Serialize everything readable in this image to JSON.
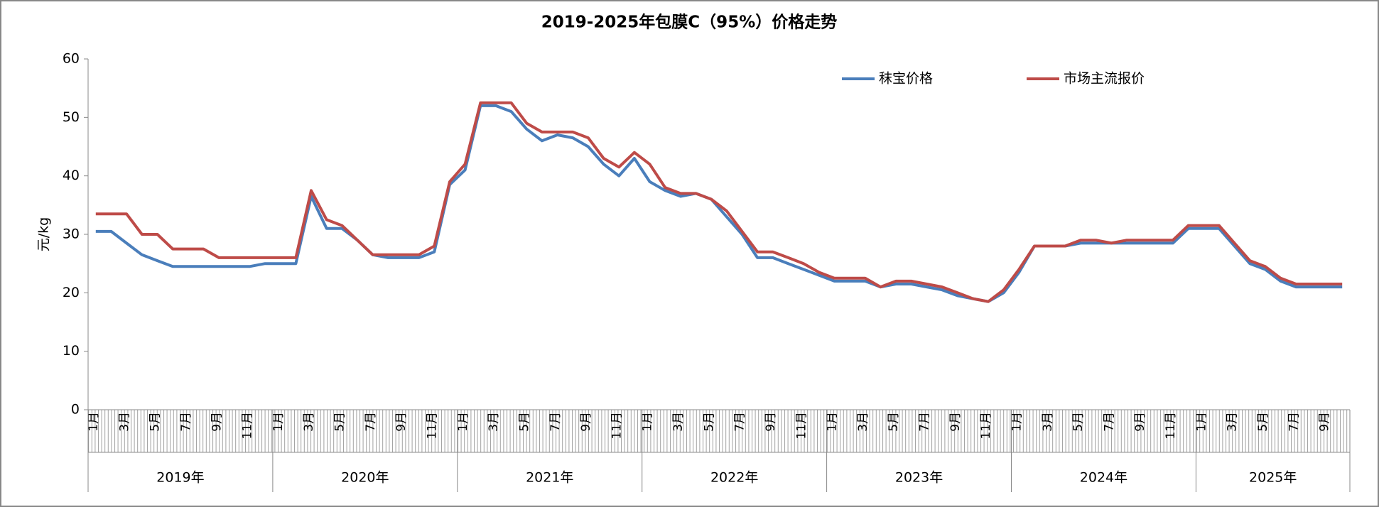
{
  "chart_data": {
    "type": "line",
    "title": "2019-2025年包膜C（95%）价格走势",
    "y_label": "元/kg",
    "categories": [
      "1月",
      null,
      "3月",
      null,
      "5月",
      null,
      "7月",
      null,
      "9月",
      null,
      "11月",
      null,
      "1月",
      null,
      "3月",
      null,
      "5月",
      null,
      "7月",
      null,
      "9月",
      null,
      "11月",
      null,
      "1月",
      null,
      "3月",
      null,
      "5月",
      null,
      "7月",
      null,
      "9月",
      null,
      "11月",
      null,
      "1月",
      null,
      "3月",
      null,
      "5月",
      null,
      "7月",
      null,
      "9月",
      null,
      "11月",
      null,
      "1月",
      null,
      "3月",
      null,
      "5月",
      null,
      "7月",
      null,
      "9月",
      null,
      "11月",
      null,
      "1月",
      null,
      "3月",
      null,
      "5月",
      null,
      "7月",
      null,
      "9月",
      null,
      "11月",
      null,
      "1月",
      null,
      "3月",
      null,
      "5月",
      null,
      "7月",
      null,
      "9月",
      null
    ],
    "years": [
      "2019年",
      "2020年",
      "2021年",
      "2022年",
      "2023年",
      "2024年",
      "2025年"
    ],
    "series": [
      {
        "name": "秣宝价格",
        "color": "#4a7ebb",
        "values": [
          30.5,
          30.5,
          28.5,
          26.5,
          25.5,
          24.5,
          24.5,
          24.5,
          24.5,
          24.5,
          24.5,
          25,
          25,
          25,
          36.5,
          31,
          31,
          29,
          26.5,
          26,
          26,
          26,
          27,
          38.5,
          41,
          52,
          52,
          51,
          48,
          46,
          47,
          46.5,
          45,
          42,
          40,
          43,
          39,
          37.5,
          36.5,
          37,
          36,
          33,
          30,
          26,
          26,
          25,
          24,
          23,
          22,
          22,
          22,
          21,
          21.5,
          21.5,
          21,
          20.5,
          19.5,
          19,
          18.5,
          20,
          23.5,
          28,
          28,
          28,
          28.5,
          28.5,
          28.5,
          28.5,
          28.5,
          28.5,
          28.5,
          31,
          31,
          31,
          28,
          25,
          24,
          22,
          21,
          21,
          21,
          21
        ]
      },
      {
        "name": "市场主流报价",
        "color": "#be4b48",
        "values": [
          33.5,
          33.5,
          33.5,
          30,
          30,
          27.5,
          27.5,
          27.5,
          26,
          26,
          26,
          26,
          26,
          26,
          37.5,
          32.5,
          31.5,
          29,
          26.5,
          26.5,
          26.5,
          26.5,
          28,
          39,
          42,
          52.5,
          52.5,
          52.5,
          49,
          47.5,
          47.5,
          47.5,
          46.5,
          43,
          41.5,
          44,
          42,
          38,
          37,
          37,
          36,
          34,
          30.5,
          27,
          27,
          26,
          25,
          23.5,
          22.5,
          22.5,
          22.5,
          21,
          22,
          22,
          21.5,
          21,
          20,
          19,
          18.5,
          20.5,
          24,
          28,
          28,
          28,
          29,
          29,
          28.5,
          29,
          29,
          29,
          29,
          31.5,
          31.5,
          31.5,
          28.5,
          25.5,
          24.5,
          22.5,
          21.5,
          21.5,
          21.5,
          21.5
        ]
      }
    ],
    "ylim": [
      0,
      60
    ],
    "yticks": [
      0,
      10,
      20,
      30,
      40,
      50,
      60
    ],
    "legend": "top-right"
  }
}
